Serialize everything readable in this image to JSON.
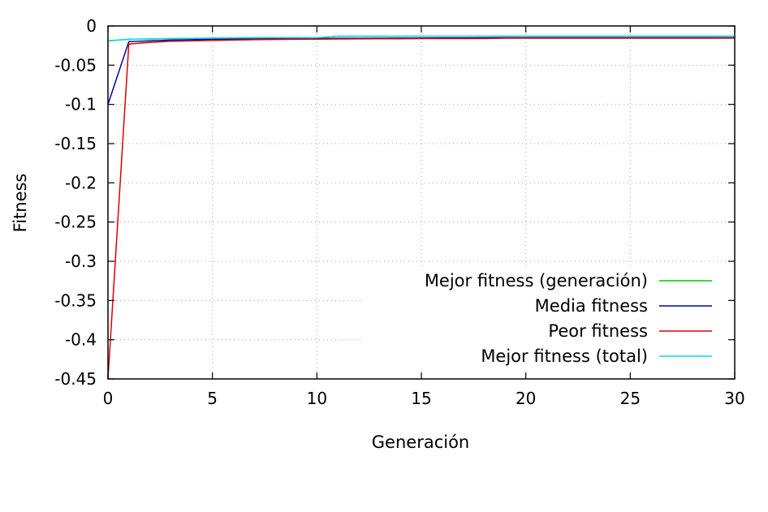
{
  "chart_data": {
    "type": "line",
    "title": "",
    "xlabel": "Generación",
    "ylabel": "Fitness",
    "xlim": [
      0,
      30
    ],
    "ylim": [
      -0.45,
      0
    ],
    "x_ticks": [
      0,
      5,
      10,
      15,
      20,
      25,
      30
    ],
    "x_tick_labels": [
      "0",
      "5",
      "10",
      "15",
      "20",
      "25",
      "30"
    ],
    "y_ticks": [
      0,
      -0.05,
      -0.1,
      -0.15,
      -0.2,
      -0.25,
      -0.3,
      -0.35,
      -0.4,
      -0.45
    ],
    "y_tick_labels": [
      "0",
      "-0.05",
      "-0.1",
      "-0.15",
      "-0.2",
      "-0.25",
      "-0.3",
      "-0.35",
      "-0.4",
      "-0.45"
    ],
    "grid": true,
    "legend_position": "bottom-right",
    "x": [
      0,
      1,
      2,
      3,
      4,
      5,
      6,
      7,
      8,
      9,
      10,
      11,
      12,
      13,
      14,
      15,
      16,
      17,
      18,
      19,
      20,
      21,
      22,
      23,
      24,
      25,
      26,
      27,
      28,
      29,
      30
    ],
    "series": [
      {
        "name": "Mejor fitness (generación)",
        "color": "#00cc00",
        "values": [
          -0.019,
          -0.017,
          -0.0165,
          -0.016,
          -0.0158,
          -0.0155,
          -0.0152,
          -0.015,
          -0.015,
          -0.015,
          -0.015,
          -0.013,
          -0.013,
          -0.013,
          -0.013,
          -0.013,
          -0.013,
          -0.013,
          -0.013,
          -0.013,
          -0.013,
          -0.013,
          -0.013,
          -0.013,
          -0.013,
          -0.013,
          -0.013,
          -0.013,
          -0.013,
          -0.013,
          -0.013
        ]
      },
      {
        "name": "Media fitness",
        "color": "#0000aa",
        "values": [
          -0.1,
          -0.02,
          -0.019,
          -0.018,
          -0.0175,
          -0.017,
          -0.0168,
          -0.0165,
          -0.0163,
          -0.0162,
          -0.016,
          -0.0158,
          -0.0157,
          -0.0156,
          -0.0155,
          -0.0154,
          -0.0153,
          -0.0152,
          -0.0151,
          -0.015,
          -0.015,
          -0.015,
          -0.015,
          -0.015,
          -0.015,
          -0.015,
          -0.015,
          -0.015,
          -0.015,
          -0.015,
          -0.015
        ]
      },
      {
        "name": "Peor fitness",
        "color": "#dd0000",
        "values": [
          -0.45,
          -0.023,
          -0.021,
          -0.0195,
          -0.019,
          -0.0185,
          -0.018,
          -0.0175,
          -0.0172,
          -0.017,
          -0.0168,
          -0.0166,
          -0.0164,
          -0.0163,
          -0.0162,
          -0.016,
          -0.016,
          -0.016,
          -0.016,
          -0.0155,
          -0.0155,
          -0.0155,
          -0.0155,
          -0.0155,
          -0.0155,
          -0.0155,
          -0.0155,
          -0.0155,
          -0.0155,
          -0.0155,
          -0.0155
        ]
      },
      {
        "name": "Mejor fitness (total)",
        "color": "#00dddd",
        "values": [
          -0.019,
          -0.017,
          -0.0165,
          -0.016,
          -0.0158,
          -0.0155,
          -0.0152,
          -0.015,
          -0.015,
          -0.015,
          -0.015,
          -0.013,
          -0.013,
          -0.013,
          -0.013,
          -0.013,
          -0.013,
          -0.013,
          -0.013,
          -0.013,
          -0.013,
          -0.013,
          -0.013,
          -0.013,
          -0.013,
          -0.013,
          -0.013,
          -0.013,
          -0.013,
          -0.013,
          -0.013
        ]
      }
    ]
  }
}
